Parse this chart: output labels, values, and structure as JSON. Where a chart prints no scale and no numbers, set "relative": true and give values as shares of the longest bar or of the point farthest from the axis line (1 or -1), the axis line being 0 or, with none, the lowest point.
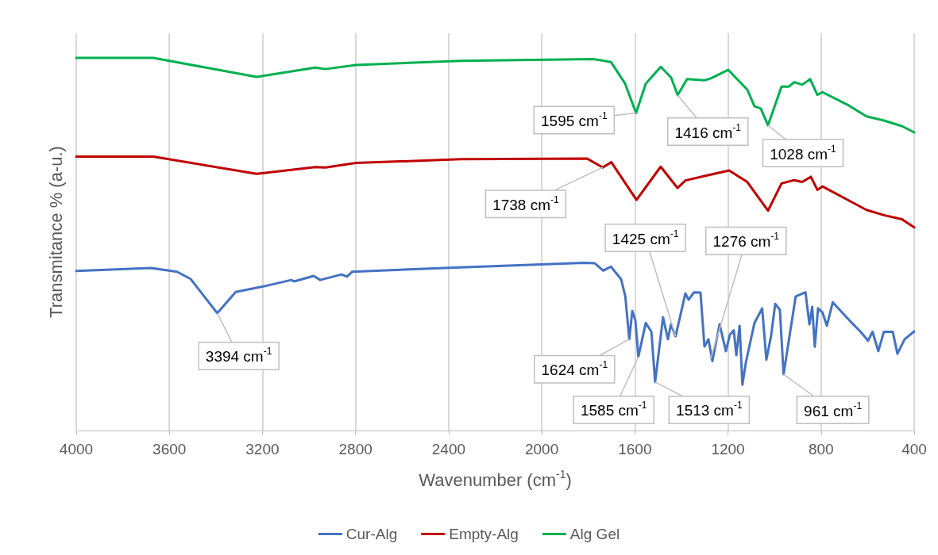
{
  "chart_data": {
    "type": "line",
    "relative": true,
    "xlabel": "Wavenumber (cm$^{-1}$)",
    "ylabel": "Transmitance % (a-u.)",
    "xlim": [
      4000,
      400
    ],
    "xticks": [
      4000,
      3600,
      3200,
      2800,
      2400,
      2000,
      1600,
      1200,
      800,
      400
    ],
    "grid": "x",
    "legend": "bottom",
    "marker": "none",
    "line_style": "solid",
    "series": [
      {
        "name": "Cur-Alg",
        "color": "#4472c4",
        "x": [
          4000,
          3679,
          3567,
          3509,
          3394,
          3315,
          3201,
          3076,
          3064,
          2980,
          2952,
          2860,
          2837,
          2815,
          2349,
          1818,
          1773,
          1736,
          1703,
          1659,
          1641,
          1624,
          1611,
          1598,
          1585,
          1553,
          1529,
          1513,
          1479,
          1458,
          1445,
          1425,
          1383,
          1369,
          1346,
          1318,
          1301,
          1284,
          1267,
          1236,
          1209,
          1192,
          1175,
          1164,
          1150,
          1138,
          1123,
          1086,
          1053,
          1035,
          1015,
          997,
          977,
          961,
          909,
          867,
          850,
          838,
          827,
          813,
          794,
          775,
          750,
          668,
          630,
          598,
          579,
          554,
          530,
          492,
          472,
          441,
          400
        ],
        "values": [
          0.428,
          0.436,
          0.426,
          0.407,
          0.315,
          0.372,
          0.386,
          0.404,
          0.4,
          0.415,
          0.404,
          0.419,
          0.413,
          0.426,
          0.438,
          0.45,
          0.449,
          0.429,
          0.44,
          0.406,
          0.36,
          0.245,
          0.321,
          0.296,
          0.198,
          0.289,
          0.265,
          0.13,
          0.304,
          0.245,
          0.285,
          0.253,
          0.368,
          0.351,
          0.371,
          0.37,
          0.225,
          0.245,
          0.186,
          0.285,
          0.213,
          0.257,
          0.269,
          0.202,
          0.281,
          0.123,
          0.183,
          0.289,
          0.328,
          0.19,
          0.253,
          0.34,
          0.324,
          0.151,
          0.36,
          0.371,
          0.285,
          0.332,
          0.225,
          0.328,
          0.317,
          0.281,
          0.344,
          0.289,
          0.265,
          0.241,
          0.265,
          0.213,
          0.265,
          0.265,
          0.206,
          0.245,
          0.266
        ]
      },
      {
        "name": "Empty-Alg",
        "color": "#c00000",
        "x": [
          4000,
          3669,
          3225,
          2973,
          2929,
          2799,
          2349,
          1806,
          1738,
          1701,
          1593,
          1489,
          1417,
          1383,
          1301,
          1195,
          1117,
          1072,
          1028,
          970,
          915,
          881,
          844,
          816,
          794,
          680,
          605,
          530,
          453,
          400
        ],
        "values": [
          0.735,
          0.735,
          0.689,
          0.707,
          0.706,
          0.718,
          0.728,
          0.73,
          0.706,
          0.72,
          0.619,
          0.708,
          0.651,
          0.671,
          0.683,
          0.698,
          0.667,
          0.628,
          0.59,
          0.663,
          0.672,
          0.667,
          0.681,
          0.646,
          0.655,
          0.617,
          0.592,
          0.578,
          0.567,
          0.545
        ]
      },
      {
        "name": "Alg Gel",
        "color": "#00b050",
        "x": [
          4000,
          3669,
          3225,
          2973,
          2930,
          2799,
          2349,
          1779,
          1703,
          1642,
          1595,
          1553,
          1489,
          1444,
          1416,
          1376,
          1301,
          1274,
          1199,
          1161,
          1117,
          1086,
          1059,
          1028,
          970,
          939,
          915,
          881,
          847,
          816,
          794,
          680,
          605,
          530,
          453,
          400
        ],
        "values": [
          1.0,
          1.0,
          0.949,
          0.974,
          0.97,
          0.981,
          0.992,
          0.997,
          0.989,
          0.931,
          0.852,
          0.931,
          0.976,
          0.947,
          0.9,
          0.943,
          0.94,
          0.945,
          0.968,
          0.943,
          0.915,
          0.87,
          0.864,
          0.819,
          0.923,
          0.923,
          0.935,
          0.928,
          0.943,
          0.901,
          0.908,
          0.872,
          0.843,
          0.832,
          0.817,
          0.8
        ]
      }
    ],
    "annotations": [
      {
        "text": "1595 cm$^{-1}$",
        "x": 1595,
        "y": 0.852
      },
      {
        "text": "1416 cm$^{-1}$",
        "x": 1416,
        "y": 0.9
      },
      {
        "text": "1028 cm$^{-1}$",
        "x": 1028,
        "y": 0.819
      },
      {
        "text": "1738 cm$^{-1}$",
        "x": 1738,
        "y": 0.706
      },
      {
        "text": "1425 cm$^{-1}$",
        "x": 1425,
        "y": 0.253
      },
      {
        "text": "1276 cm$^{-1}$",
        "x": 1276,
        "y": 0.19
      },
      {
        "text": "3394 cm$^{-1}$",
        "x": 3394,
        "y": 0.315
      },
      {
        "text": "1624 cm$^{-1}$",
        "x": 1624,
        "y": 0.245
      },
      {
        "text": "1585 cm$^{-1}$",
        "x": 1585,
        "y": 0.198
      },
      {
        "text": "1513 cm$^{-1}$",
        "x": 1513,
        "y": 0.13
      },
      {
        "text": "961 cm$^{-1}$",
        "x": 961,
        "y": 0.151
      }
    ]
  }
}
